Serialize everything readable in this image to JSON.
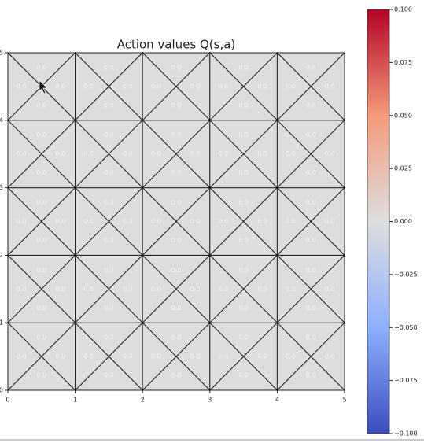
{
  "chart_data": {
    "type": "heatmap",
    "title": "Action values Q(s,a)",
    "xlim": [
      0,
      5
    ],
    "xticks": [
      0,
      1,
      2,
      3,
      4,
      5
    ],
    "ylim": [
      0,
      5
    ],
    "yticks": [
      0,
      1,
      2,
      3,
      4,
      5
    ],
    "colormap": "coolwarm",
    "values": [
      [
        [
          0,
          0,
          0,
          0
        ],
        [
          0,
          0,
          0,
          0
        ],
        [
          0,
          0,
          0,
          0
        ],
        [
          0,
          0,
          0,
          0
        ],
        [
          0,
          0,
          0,
          0
        ]
      ],
      [
        [
          0,
          0,
          0,
          0
        ],
        [
          0,
          0,
          0,
          0
        ],
        [
          0,
          0,
          0,
          0
        ],
        [
          0,
          0,
          0,
          0
        ],
        [
          0,
          0,
          0,
          0
        ]
      ],
      [
        [
          0,
          0,
          0,
          0
        ],
        [
          0,
          0,
          0,
          0
        ],
        [
          0,
          0,
          0,
          0
        ],
        [
          0,
          0,
          0,
          0
        ],
        [
          0,
          0,
          0,
          0
        ]
      ],
      [
        [
          0,
          0,
          0,
          0
        ],
        [
          0,
          0,
          0,
          0
        ],
        [
          0,
          0,
          0,
          0
        ],
        [
          0,
          0,
          0,
          0
        ],
        [
          0,
          0,
          0,
          0
        ]
      ],
      [
        [
          0,
          0,
          0,
          0
        ],
        [
          0,
          0,
          0,
          0
        ],
        [
          0,
          0,
          0,
          0
        ],
        [
          0,
          0,
          0,
          0
        ],
        [
          0,
          0,
          0,
          0
        ]
      ]
    ],
    "value_labels": [
      [
        [
          "0.0",
          "0.0",
          "0.0",
          "0.0"
        ],
        [
          "0.0",
          "0.0",
          "0.0",
          "0.0"
        ],
        [
          "0.0",
          "0.0",
          "0.0",
          "0.0"
        ],
        [
          "0.0",
          "0.0",
          "0.0",
          "0.0"
        ],
        [
          "0.0",
          "0.0",
          "0.0",
          "0.0"
        ]
      ],
      [
        [
          "0.0",
          "0.0",
          "0.0",
          "0.0"
        ],
        [
          "0.0",
          "0.0",
          "0.0",
          "0.0"
        ],
        [
          "0.0",
          "0.0",
          "0.0",
          "0.0"
        ],
        [
          "0.0",
          "0.0",
          "0.0",
          "0.0"
        ],
        [
          "0.0",
          "0.0",
          "0.0",
          "0.0"
        ]
      ],
      [
        [
          "0.0",
          "0.0",
          "0.0",
          "0.0"
        ],
        [
          "0.0",
          "0.0",
          "0.0",
          "0.0"
        ],
        [
          "0.0",
          "0.0",
          "0.0",
          "0.0"
        ],
        [
          "0.0",
          "0.0",
          "0.0",
          "0.0"
        ],
        [
          "0.0",
          "0.0",
          "0.0",
          "0.0"
        ]
      ],
      [
        [
          "0.0",
          "0.0",
          "0.0",
          "0.0"
        ],
        [
          "0.0",
          "0.0",
          "0.0",
          "0.0"
        ],
        [
          "0.0",
          "0.0",
          "0.0",
          "0.0"
        ],
        [
          "0.0",
          "0.0",
          "0.0",
          "0.0"
        ],
        [
          "0.0",
          "0.0",
          "0.0",
          "0.0"
        ]
      ],
      [
        [
          "0.0",
          "0.0",
          "0.0",
          "0.0"
        ],
        [
          "0.0",
          "0.0",
          "0.0",
          "0.0"
        ],
        [
          "0.0",
          "0.0",
          "0.0",
          "0.0"
        ],
        [
          "0.0",
          "0.0",
          "0.0",
          "0.0"
        ],
        [
          "0.0",
          "0.0",
          "0.0",
          "0.0"
        ]
      ]
    ],
    "colorbar": {
      "lim": [
        -0.1,
        0.1
      ],
      "ticks": [
        {
          "value": 0.1,
          "label": "0.100"
        },
        {
          "value": 0.075,
          "label": "0.075"
        },
        {
          "value": 0.05,
          "label": "0.050"
        },
        {
          "value": 0.025,
          "label": "0.025"
        },
        {
          "value": 0,
          "label": "0.000"
        },
        {
          "value": -0.025,
          "label": "−0.025"
        },
        {
          "value": -0.05,
          "label": "−0.050"
        },
        {
          "value": -0.075,
          "label": "−0.075"
        },
        {
          "value": -0.1,
          "label": "−0.100"
        }
      ]
    }
  }
}
